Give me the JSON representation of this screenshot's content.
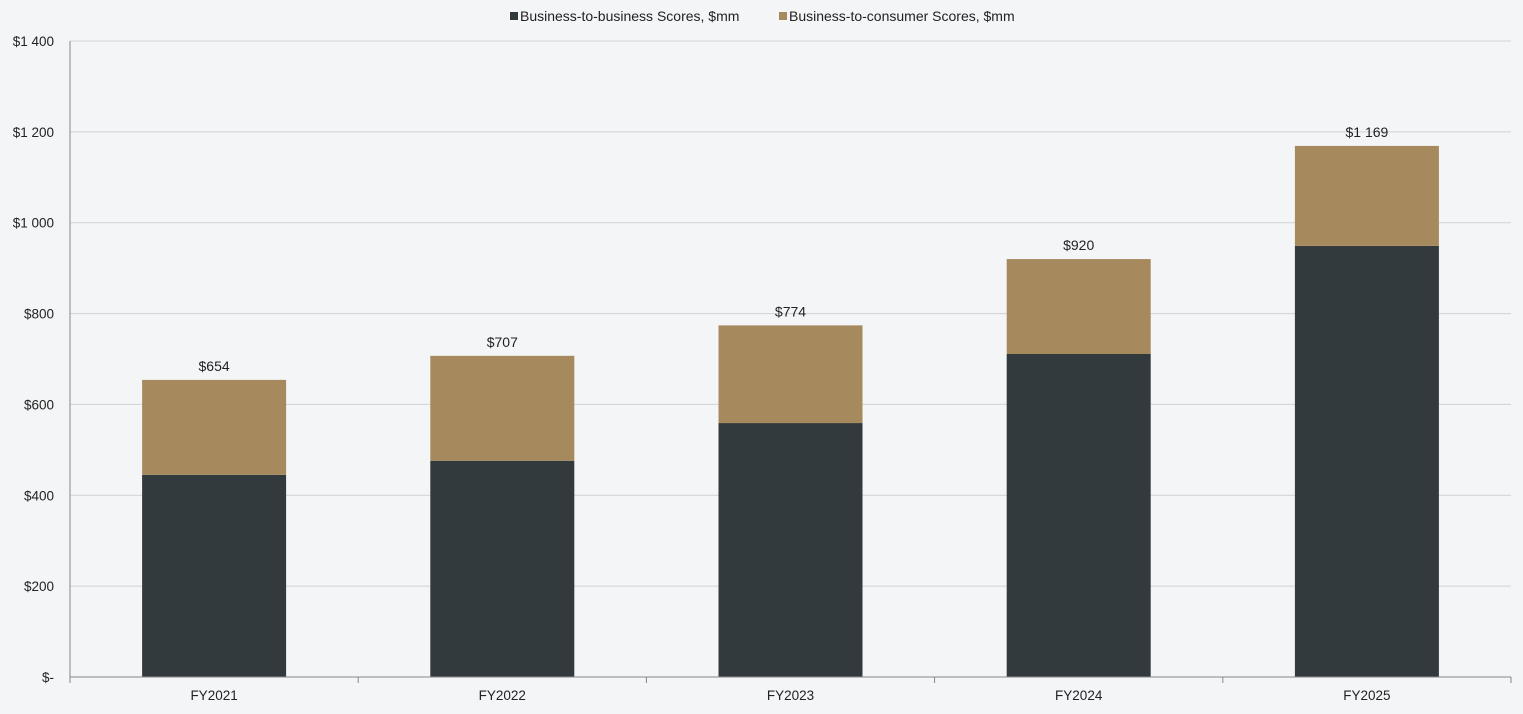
{
  "chart_data": {
    "type": "bar",
    "stacked": true,
    "categories": [
      "FY2021",
      "FY2022",
      "FY2023",
      "FY2024",
      "FY2025"
    ],
    "series": [
      {
        "name": "Business-to-business Scores, $mm",
        "color": "#333a3d",
        "values": [
          445,
          476,
          559,
          711,
          949
        ]
      },
      {
        "name": "Business-to-consumer Scores, $mm",
        "color": "#a68a5e",
        "values": [
          209,
          231,
          215,
          209,
          220
        ]
      }
    ],
    "totals": [
      654,
      707,
      774,
      920,
      1169
    ],
    "total_labels": [
      "$654",
      "$707",
      "$774",
      "$920",
      "$1 169"
    ],
    "y_ticks": [
      0,
      200,
      400,
      600,
      800,
      1000,
      1200,
      1400
    ],
    "y_tick_labels": [
      "$-",
      "$200",
      "$400",
      "$600",
      "$800",
      "$1 000",
      "$1 200",
      "$1 400"
    ],
    "ylim": [
      0,
      1400
    ],
    "grid": true,
    "legend_position": "top-center",
    "title": "",
    "xlabel": "",
    "ylabel": "",
    "colors": {
      "background": "#f4f5f7",
      "gridline": "#cfd2d6",
      "axis": "#888888"
    }
  }
}
